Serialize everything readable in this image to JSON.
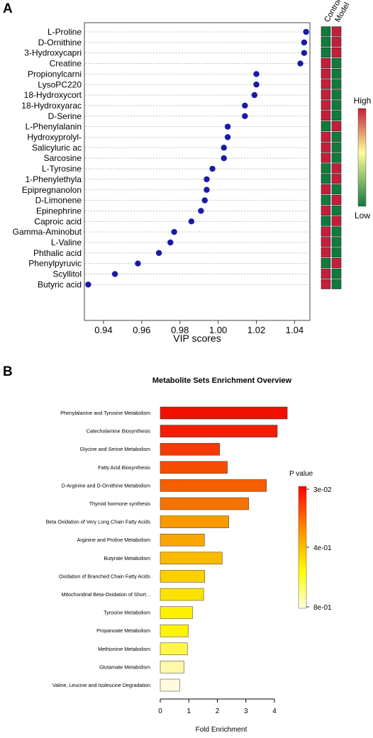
{
  "panel_a": {
    "label": "A"
  },
  "panel_b": {
    "label": "B"
  },
  "colors": {
    "point": "#1a1aa8",
    "heat_high": "#c41e3a",
    "heat_low": "#117a3e",
    "heat_mid": "#ffffcc"
  },
  "chart_data": [
    {
      "type": "scatter",
      "title": "",
      "xlabel": "VIP scores",
      "ylabel": "",
      "xlim": [
        0.93,
        1.048
      ],
      "xticks": [
        "0.94",
        "0.96",
        "0.98",
        "1.00",
        "1.02",
        "1.04"
      ],
      "categories": [
        "L-Proline",
        "D-Ornithine",
        "3-Hydroxycapri",
        "Creatine",
        "Propionylcarni",
        "LysoPC220",
        "18-Hydroxycort",
        "18-Hydroxyarac",
        "D-Serine",
        "L-Phenylalanin",
        "Hydroxyprolyl-",
        "Salicyluric ac",
        "Sarcosine",
        "L-Tyrosine",
        "1-Phenylethyla",
        "Epipregnanolon",
        "D-Limonene",
        "Epinephrine",
        "Caproic acid",
        "Gamma-Aminobut",
        "L-Valine",
        "Phthalic acid",
        "Phenylpyruvic",
        "Scyllitol",
        "Butyric acid"
      ],
      "values": [
        1.046,
        1.045,
        1.045,
        1.043,
        1.02,
        1.02,
        1.019,
        1.014,
        1.014,
        1.005,
        1.005,
        1.003,
        1.003,
        0.997,
        0.994,
        0.994,
        0.993,
        0.991,
        0.986,
        0.977,
        0.975,
        0.969,
        0.958,
        0.946,
        0.932
      ],
      "grid": true,
      "heatmap": {
        "columns": [
          "Control",
          "Model"
        ],
        "cells": [
          [
            "low",
            "high"
          ],
          [
            "low",
            "high"
          ],
          [
            "low",
            "high"
          ],
          [
            "high",
            "low"
          ],
          [
            "high",
            "low"
          ],
          [
            "high",
            "low"
          ],
          [
            "high",
            "low"
          ],
          [
            "high",
            "low"
          ],
          [
            "high",
            "low"
          ],
          [
            "low",
            "high"
          ],
          [
            "high",
            "low"
          ],
          [
            "high",
            "low"
          ],
          [
            "high",
            "low"
          ],
          [
            "low",
            "high"
          ],
          [
            "low",
            "high"
          ],
          [
            "high",
            "low"
          ],
          [
            "low",
            "high"
          ],
          [
            "high",
            "low"
          ],
          [
            "low",
            "high"
          ],
          [
            "high",
            "low"
          ],
          [
            "high",
            "low"
          ],
          [
            "high",
            "low"
          ],
          [
            "low",
            "high"
          ],
          [
            "high",
            "low"
          ],
          [
            "high",
            "low"
          ]
        ],
        "legend": {
          "high": "High",
          "low": "Low"
        }
      }
    },
    {
      "type": "bar",
      "orientation": "horizontal",
      "title": "Metabolite Sets Enrichment Overview",
      "xlabel": "Fold Enrichment",
      "ylabel": "",
      "xlim": [
        0,
        4.3
      ],
      "xticks": [
        "0",
        "1",
        "2",
        "3",
        "4"
      ],
      "categories": [
        "Phenylalanine and Tyrosine Metabolism",
        "Catecholamine Biosynthesis",
        "Glycine and Serine Metabolism",
        "Fatty Acid Biosynthesis",
        "D-Arginine and D-Ornithine Metabolism",
        "Thyroid hormone synthesis",
        "Beta Oxidation of Very Long Chain Fatty Acids",
        "Arginine and Proline Metabolism",
        "Butyrate Metabolism",
        "Oxidation of Branched Chain Fatty Acids",
        "Mitochondrial Beta-Oxidation of Short...",
        "Tyrosine Metabolism",
        "Propanoate Metabolism",
        "Methionine Metabolism",
        "Glutamate Metabolism",
        "Valine, Leucine and Isoleucine Degradation"
      ],
      "values": [
        4.45,
        4.1,
        2.08,
        2.35,
        3.72,
        3.1,
        2.4,
        1.55,
        2.17,
        1.56,
        1.52,
        1.13,
        0.98,
        0.95,
        0.83,
        0.68
      ],
      "bar_colors": [
        "#f20f00",
        "#f31d00",
        "#f43a00",
        "#f44d00",
        "#f65e00",
        "#f77200",
        "#f89a00",
        "#f9a600",
        "#faba00",
        "#fbd000",
        "#fce200",
        "#fdf100",
        "#fef400",
        "#fff84a",
        "#fff8a8",
        "#fffbdc"
      ],
      "colorbar": {
        "title": "P value",
        "ticks": [
          "3e-02",
          "4e-01",
          "8e-01"
        ],
        "colors": [
          "#ff0000",
          "#ff8c00",
          "#ffff00",
          "#ffffe6"
        ]
      }
    }
  ]
}
